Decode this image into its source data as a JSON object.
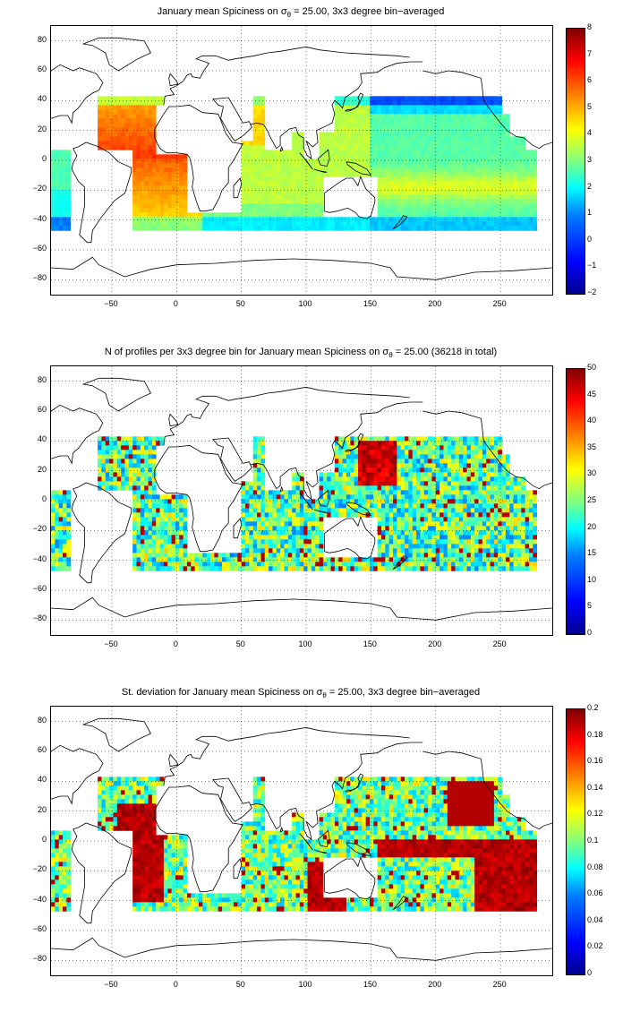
{
  "panels": [
    {
      "title_pre": "January mean Spiciness on σ",
      "title_sub": "θ",
      "title_post": " = 25.00, 3x3 degree bin−averaged",
      "cbar_ticks": [
        "8",
        "7",
        "6",
        "5",
        "4",
        "3",
        "2",
        "1",
        "0",
        "−1",
        "−2"
      ],
      "cbar_range": [
        -2,
        8
      ]
    },
    {
      "title_pre": "N of profiles per 3x3 degree bin for January mean Spiciness on σ",
      "title_sub": "θ",
      "title_post": " = 25.00 (36218 in total)",
      "cbar_ticks": [
        "50",
        "45",
        "40",
        "35",
        "30",
        "25",
        "20",
        "15",
        "10",
        "5",
        "0"
      ],
      "cbar_range": [
        0,
        50
      ]
    },
    {
      "title_pre": "St. deviation for January mean Spiciness on σ",
      "title_sub": "θ",
      "title_post": " = 25.00, 3x3 degree bin−averaged",
      "cbar_ticks": [
        "0.2",
        "0.18",
        "0.16",
        "0.14",
        "0.12",
        "0.1",
        "0.08",
        "0.06",
        "0.04",
        "0.02",
        "0"
      ],
      "cbar_range": [
        0,
        0.2
      ]
    }
  ],
  "axes": {
    "y_ticks": [
      "80",
      "60",
      "40",
      "20",
      "0",
      "−20",
      "−40",
      "−60",
      "−80"
    ],
    "x_ticks": [
      "−50",
      "0",
      "50",
      "100",
      "150",
      "200",
      "250"
    ],
    "lat_range": [
      -90,
      90
    ],
    "lon_range": [
      -97,
      290
    ]
  },
  "colormap": "jet"
}
